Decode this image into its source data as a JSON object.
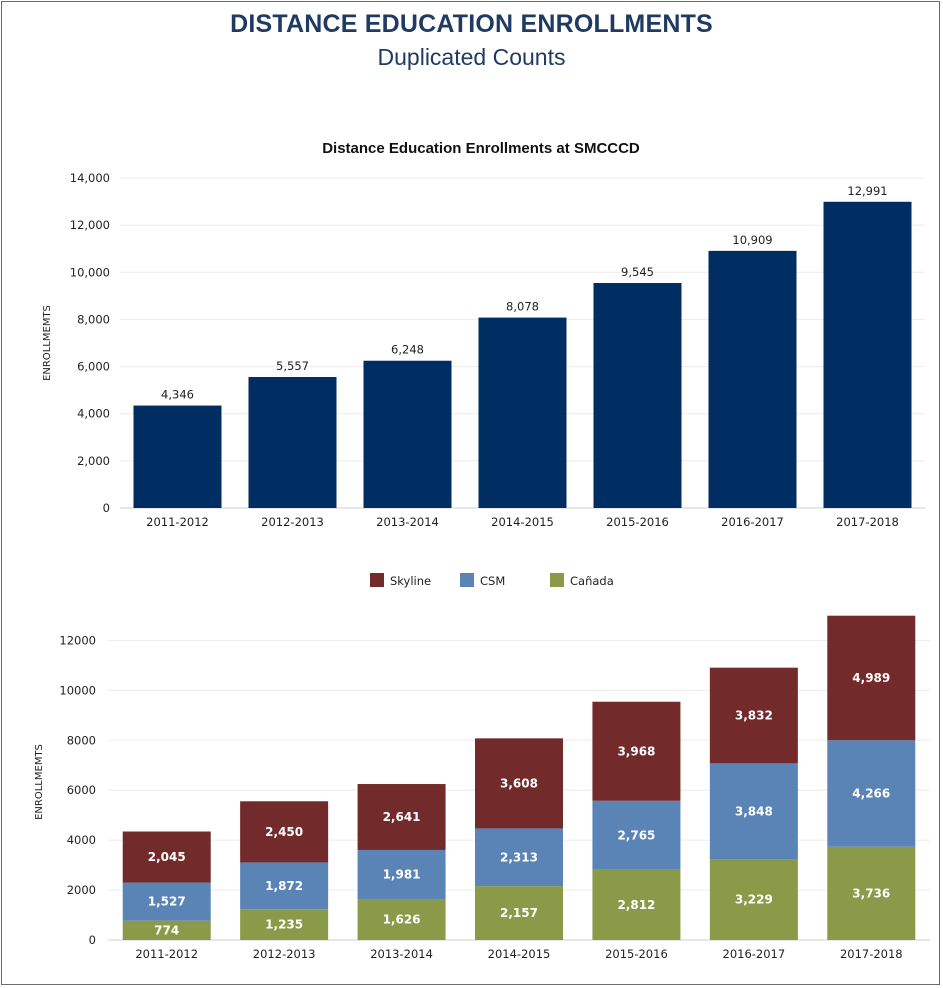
{
  "header": {
    "title": "DISTANCE EDUCATION ENROLLMENTS",
    "subtitle": "Duplicated Counts"
  },
  "colors": {
    "navy": "#002d62",
    "skyline": "#722b2a",
    "csm": "#5b84b6",
    "canada": "#8a9a48",
    "title": "#1f3b63"
  },
  "chart_data": [
    {
      "type": "bar",
      "title": "Distance Education Enrollments at SMCCCD",
      "xlabel": "",
      "ylabel": "ENROLLMEMTS",
      "categories": [
        "2011-2012",
        "2012-2013",
        "2013-2014",
        "2014-2015",
        "2015-2016",
        "2016-2017",
        "2017-2018"
      ],
      "values": [
        4346,
        5557,
        6248,
        8078,
        9545,
        10909,
        12991
      ],
      "value_labels": [
        "4,346",
        "5,557",
        "6,248",
        "8,078",
        "9,545",
        "10,909",
        "12,991"
      ],
      "ylim": [
        0,
        14000
      ],
      "yticks": [
        "0",
        "2,000",
        "4,000",
        "6,000",
        "8,000",
        "10,000",
        "12,000",
        "14,000"
      ],
      "grid": true
    },
    {
      "type": "bar",
      "stacked": true,
      "title": "",
      "xlabel": "",
      "ylabel": "ENROLLMEMTS",
      "legend_position": "top-center",
      "categories": [
        "2011-2012",
        "2012-2013",
        "2013-2014",
        "2014-2015",
        "2015-2016",
        "2016-2017",
        "2017-2018"
      ],
      "series": [
        {
          "name": "Cañada",
          "values": [
            774,
            1235,
            1626,
            2157,
            2812,
            3229,
            3736
          ],
          "labels": [
            "774",
            "1,235",
            "1,626",
            "2,157",
            "2,812",
            "3,229",
            "3,736"
          ]
        },
        {
          "name": "CSM",
          "values": [
            1527,
            1872,
            1981,
            2313,
            2765,
            3848,
            4266
          ],
          "labels": [
            "1,527",
            "1,872",
            "1,981",
            "2,313",
            "2,765",
            "3,848",
            "4,266"
          ]
        },
        {
          "name": "Skyline",
          "values": [
            2045,
            2450,
            2641,
            3608,
            3968,
            3832,
            4989
          ],
          "labels": [
            "2,045",
            "2,450",
            "2,641",
            "3,608",
            "3,968",
            "3,832",
            "4,989"
          ]
        }
      ],
      "legend_order": [
        "Skyline",
        "CSM",
        "Cañada"
      ],
      "ylim": [
        0,
        13500
      ],
      "yticks": [
        "0",
        "2000",
        "4000",
        "6000",
        "8000",
        "10000",
        "12000"
      ],
      "grid": true
    }
  ]
}
